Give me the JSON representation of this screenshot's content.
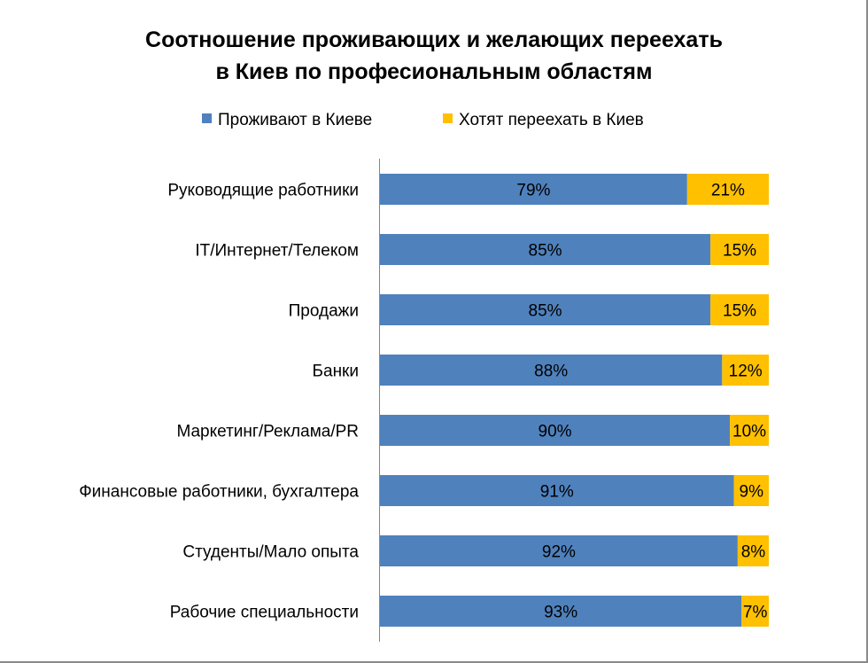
{
  "chart_data": {
    "type": "bar",
    "orientation": "horizontal",
    "stacked": "percent",
    "title": [
      "Соотношение проживающих и желающих переехать",
      "в Киев по професиональным областям"
    ],
    "legend_position": "top",
    "categories": [
      "Руководящие работники",
      "IT/Интернет/Телеком",
      "Продажи",
      "Банки",
      "Маркетинг/Реклама/PR",
      "Финансовые работники, бухгалтера",
      "Студенты/Мало опыта",
      "Рабочие специальности"
    ],
    "series": [
      {
        "name": "Проживают в Киеве",
        "color": "#4F81BD",
        "values": [
          79,
          85,
          85,
          88,
          90,
          91,
          92,
          93
        ],
        "labels": [
          "79%",
          "85%",
          "85%",
          "88%",
          "90%",
          "91%",
          "92%",
          "93%"
        ]
      },
      {
        "name": "Хотят переехать в Киев",
        "color": "#FFC000",
        "values": [
          21,
          15,
          15,
          12,
          10,
          9,
          8,
          7
        ],
        "labels": [
          "21%",
          "15%",
          "15%",
          "12%",
          "10%",
          "9%",
          "8%",
          "7%"
        ]
      }
    ],
    "xlim": [
      0,
      100
    ],
    "grid": false
  }
}
